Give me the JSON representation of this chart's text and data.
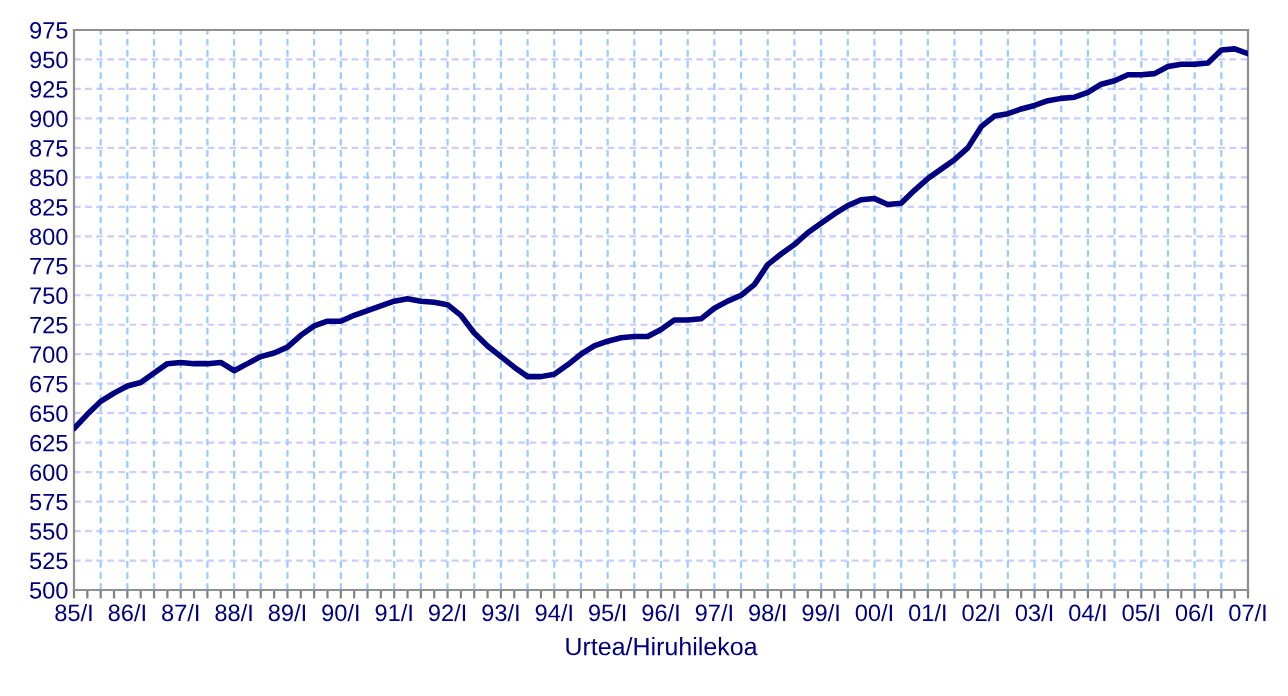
{
  "chart_data": {
    "type": "line",
    "xlabel": "Urtea/Hiruhilekoa",
    "categories": [
      "85/I",
      null,
      null,
      null,
      "86/I",
      null,
      null,
      null,
      "87/I",
      null,
      null,
      null,
      "88/I",
      null,
      null,
      null,
      "89/I",
      null,
      null,
      null,
      "90/I",
      null,
      null,
      null,
      "91/I",
      null,
      null,
      null,
      "92/I",
      null,
      null,
      null,
      "93/I",
      null,
      null,
      null,
      "94/I",
      null,
      null,
      null,
      "95/I",
      null,
      null,
      null,
      "96/I",
      null,
      null,
      null,
      "97/I",
      null,
      null,
      null,
      "98/I",
      null,
      null,
      null,
      "99/I",
      null,
      null,
      null,
      "00/I",
      null,
      null,
      null,
      "01/I",
      null,
      null,
      null,
      "02/I",
      null,
      null,
      null,
      "03/I",
      null,
      null,
      null,
      "04/I",
      null,
      null,
      null,
      "05/I",
      null,
      null,
      null,
      "06/I",
      null,
      null,
      null,
      "07/I"
    ],
    "series": [
      {
        "color": "#000080",
        "values": [
          637,
          649,
          660,
          667,
          673,
          676,
          684,
          692,
          693,
          692,
          692,
          693,
          686,
          692,
          698,
          701,
          706,
          716,
          724,
          728,
          728,
          733,
          737,
          741,
          745,
          747,
          745,
          744,
          742,
          733,
          718,
          707,
          698,
          689,
          681,
          681,
          683,
          691,
          700,
          707,
          711,
          714,
          715,
          715,
          721,
          729,
          729,
          730,
          739,
          745,
          750,
          759,
          776,
          785,
          793,
          803,
          811,
          819,
          826,
          831,
          832,
          827,
          828,
          839,
          849,
          857,
          865,
          875,
          893,
          902,
          904,
          908,
          911,
          915,
          917,
          918,
          922,
          929,
          932,
          937,
          937,
          938,
          944,
          946,
          946,
          947,
          958,
          959,
          955
        ]
      }
    ],
    "ylim": [
      500,
      975
    ],
    "yticks": [
      500,
      525,
      550,
      575,
      600,
      625,
      650,
      675,
      700,
      725,
      750,
      775,
      800,
      825,
      850,
      875,
      900,
      925,
      950,
      975
    ],
    "grid": true,
    "marker": "none",
    "line_style": "solid"
  }
}
